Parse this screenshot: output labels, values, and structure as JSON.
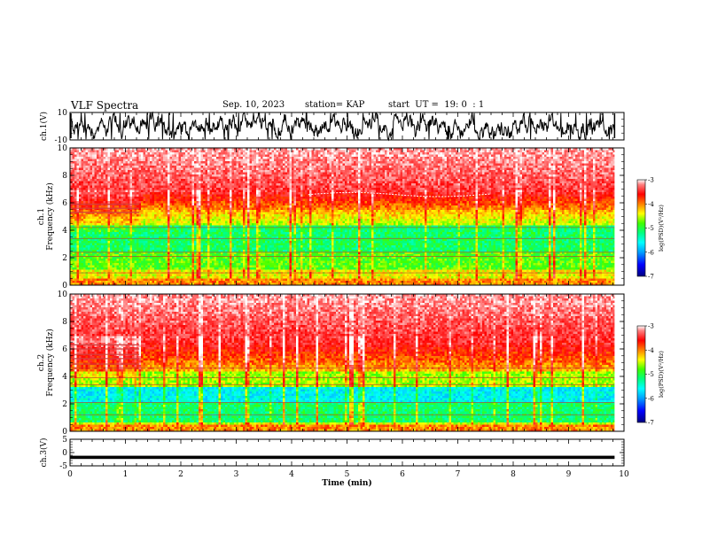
{
  "header": {
    "title": "VLF Spectra",
    "date": "Sep. 10, 2023",
    "station": "station= KAP",
    "start": "start  UT =  19: 0  : 1"
  },
  "chart_data": [
    {
      "type": "line",
      "name": "ch1-waveform",
      "ylabel": "ch.1(V)",
      "ylim": [
        -10,
        10
      ],
      "yticks": [
        "10",
        "-10"
      ],
      "xlim": [
        0,
        10
      ],
      "x_end": 9.83,
      "mean": 0,
      "amplitude": 6
    },
    {
      "type": "heatmap",
      "name": "ch1-spectrogram",
      "ylabel_line1": "ch.1",
      "ylabel_line2": "Frequency  (kHz)",
      "ylim": [
        0,
        10
      ],
      "yticks": [
        "0",
        "2",
        "4",
        "6",
        "8",
        "10"
      ],
      "xlim": [
        0,
        10
      ],
      "x_end": 9.83,
      "colorbar": {
        "label": "log(PSD)(V²/Hz)",
        "range": [
          -7,
          -3
        ],
        "ticks": [
          "-3",
          "-4",
          "-5",
          "-6",
          "-7"
        ]
      }
    },
    {
      "type": "heatmap",
      "name": "ch2-spectrogram",
      "ylabel_line1": "ch.2",
      "ylabel_line2": "Frequency  (kHz)",
      "ylim": [
        0,
        10
      ],
      "yticks": [
        "0",
        "2",
        "4",
        "6",
        "8",
        "10"
      ],
      "xlim": [
        0,
        10
      ],
      "x_end": 9.83,
      "colorbar": {
        "label": "log(PSD)(V²/Hz)",
        "range": [
          -7,
          -3
        ],
        "ticks": [
          "-3",
          "-4",
          "-5",
          "-6",
          "-7"
        ]
      }
    },
    {
      "type": "line",
      "name": "ch3-waveform",
      "ylabel": "ch.3(V)",
      "ylim": [
        -5,
        5
      ],
      "yticks": [
        "5",
        "0",
        "-5"
      ],
      "xlim": [
        0,
        10
      ],
      "x_end": 9.83,
      "mean": -1.8,
      "amplitude": 0.6
    }
  ],
  "xaxis": {
    "label": "Time  (min)",
    "ticks": [
      "0",
      "1",
      "2",
      "3",
      "4",
      "5",
      "6",
      "7",
      "8",
      "9",
      "10"
    ]
  },
  "colors": {
    "colormap": [
      "#000080",
      "#0000ff",
      "#00a0ff",
      "#00ffff",
      "#00ff80",
      "#40ff00",
      "#ffff00",
      "#ff8000",
      "#ff0000",
      "#ff6060",
      "#ffffff"
    ]
  }
}
